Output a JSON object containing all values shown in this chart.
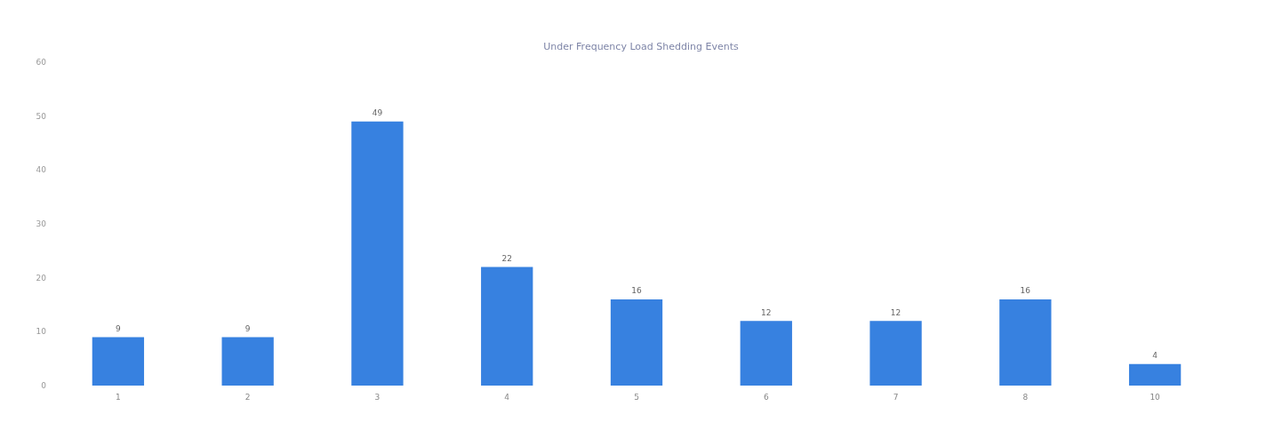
{
  "chart_data": {
    "type": "bar",
    "title": "Under Frequency Load Shedding Events",
    "categories": [
      "1",
      "2",
      "3",
      "4",
      "5",
      "6",
      "7",
      "8",
      "10"
    ],
    "values": [
      9,
      9,
      49,
      22,
      16,
      12,
      12,
      16,
      4
    ],
    "color": "#3781e0",
    "ylim": [
      0,
      60
    ],
    "yticks": [
      0,
      10,
      20,
      30,
      40,
      50,
      60
    ],
    "grid": false,
    "data_labels": true
  }
}
